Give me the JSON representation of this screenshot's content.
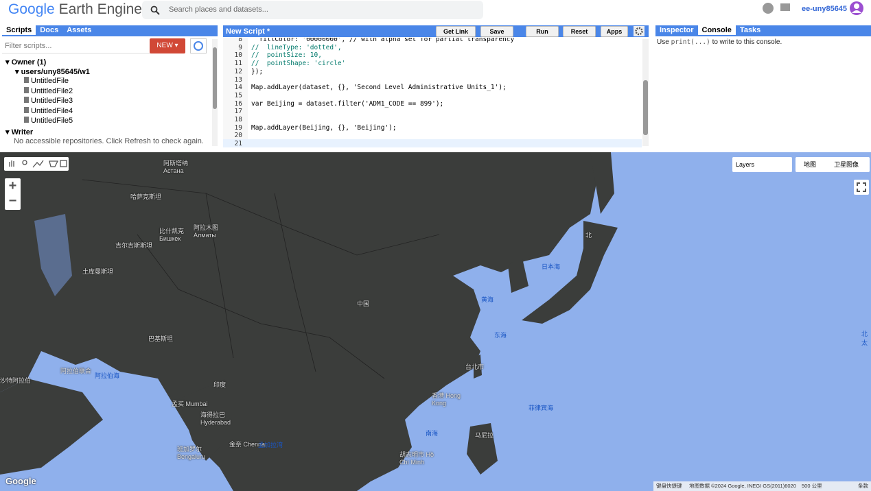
{
  "header": {
    "logo_google": "Google",
    "logo_product": "Earth Engine",
    "search_placeholder": "Search places and datasets...",
    "user": "ee-uny85645"
  },
  "left_panel": {
    "tabs": [
      "Scripts",
      "Docs",
      "Assets"
    ],
    "filter_placeholder": "Filter scripts...",
    "new_button": "NEW",
    "tree": {
      "owner": "Owner (1)",
      "repo": "users/uny85645/w1",
      "files": [
        "UntitledFile",
        "UntitledFile2",
        "UntitledFile3",
        "UntitledFile4",
        "UntitledFile5"
      ],
      "writer": "Writer",
      "writer_note": "No accessible repositories. Click Refresh to check again."
    }
  },
  "editor": {
    "title": "New Script *",
    "buttons": [
      "Get Link",
      "Save",
      "Run",
      "Reset",
      "Apps"
    ],
    "lines": [
      {
        "number": 8,
        "text": "  fillColor: '00000000', // with alpha set for partial transparency"
      },
      {
        "number": 9,
        "text": "//  lineType: 'dotted',"
      },
      {
        "number": 10,
        "text": "//  pointSize: 10,"
      },
      {
        "number": 11,
        "text": "//  pointShape: 'circle'"
      },
      {
        "number": 12,
        "text": "});"
      },
      {
        "number": 13
      },
      {
        "number": 14,
        "text": "Map.addLayer(dataset, {}, 'Second Level Administrative Units_1');"
      },
      {
        "number": 15
      },
      {
        "number": 16,
        "text": "var Beijing = dataset.filter('ADM1_CODE == 899');"
      },
      {
        "number": 17
      },
      {
        "number": 18
      },
      {
        "number": 19,
        "text": "Map.addLayer(Beijing, {}, 'Beijing');"
      },
      {
        "number": 20
      },
      {
        "number": 21
      }
    ]
  },
  "right_panel": {
    "tabs": [
      "Inspector",
      "Console",
      "Tasks"
    ],
    "console_prefix": "Use",
    "console_code": "print(...)",
    "console_suffix": "to write to this console."
  },
  "map": {
    "layers": "Layers",
    "map_type": "地图",
    "satellite": "卫星图像",
    "zoom_in": "+",
    "zoom_out": "−",
    "labels": [
      "阿斯塔纳 Астана",
      "哈萨克斯坦",
      "比什凯克 Бишкек",
      "阿拉木图 Алматы",
      "吉尔吉斯斯坦",
      "土库曼斯坦",
      "巴基斯坦",
      "中国",
      "北",
      "日本海",
      "黄海",
      "东海",
      "台北市",
      "香港 Hong Kong",
      "印度",
      "阿拉伯海",
      "孟买 Mumbai",
      "海得拉巴 Hyderabad",
      "班加罗尔 Bengaluru",
      "金奈 Chennai",
      "孟加拉湾",
      "南海",
      "菲律宾海",
      "阿拉伯联合",
      "沙特阿拉伯",
      "胡志明市 Hồ Chí Minh",
      "马尼拉",
      "北太"
    ],
    "footer": {
      "google": "Google",
      "shortcuts": "键盘快捷键",
      "data": "地图数据 ©2024 Google, INEGI GS(2011)6020",
      "scale": "500 公里",
      "terms": "条款"
    }
  }
}
